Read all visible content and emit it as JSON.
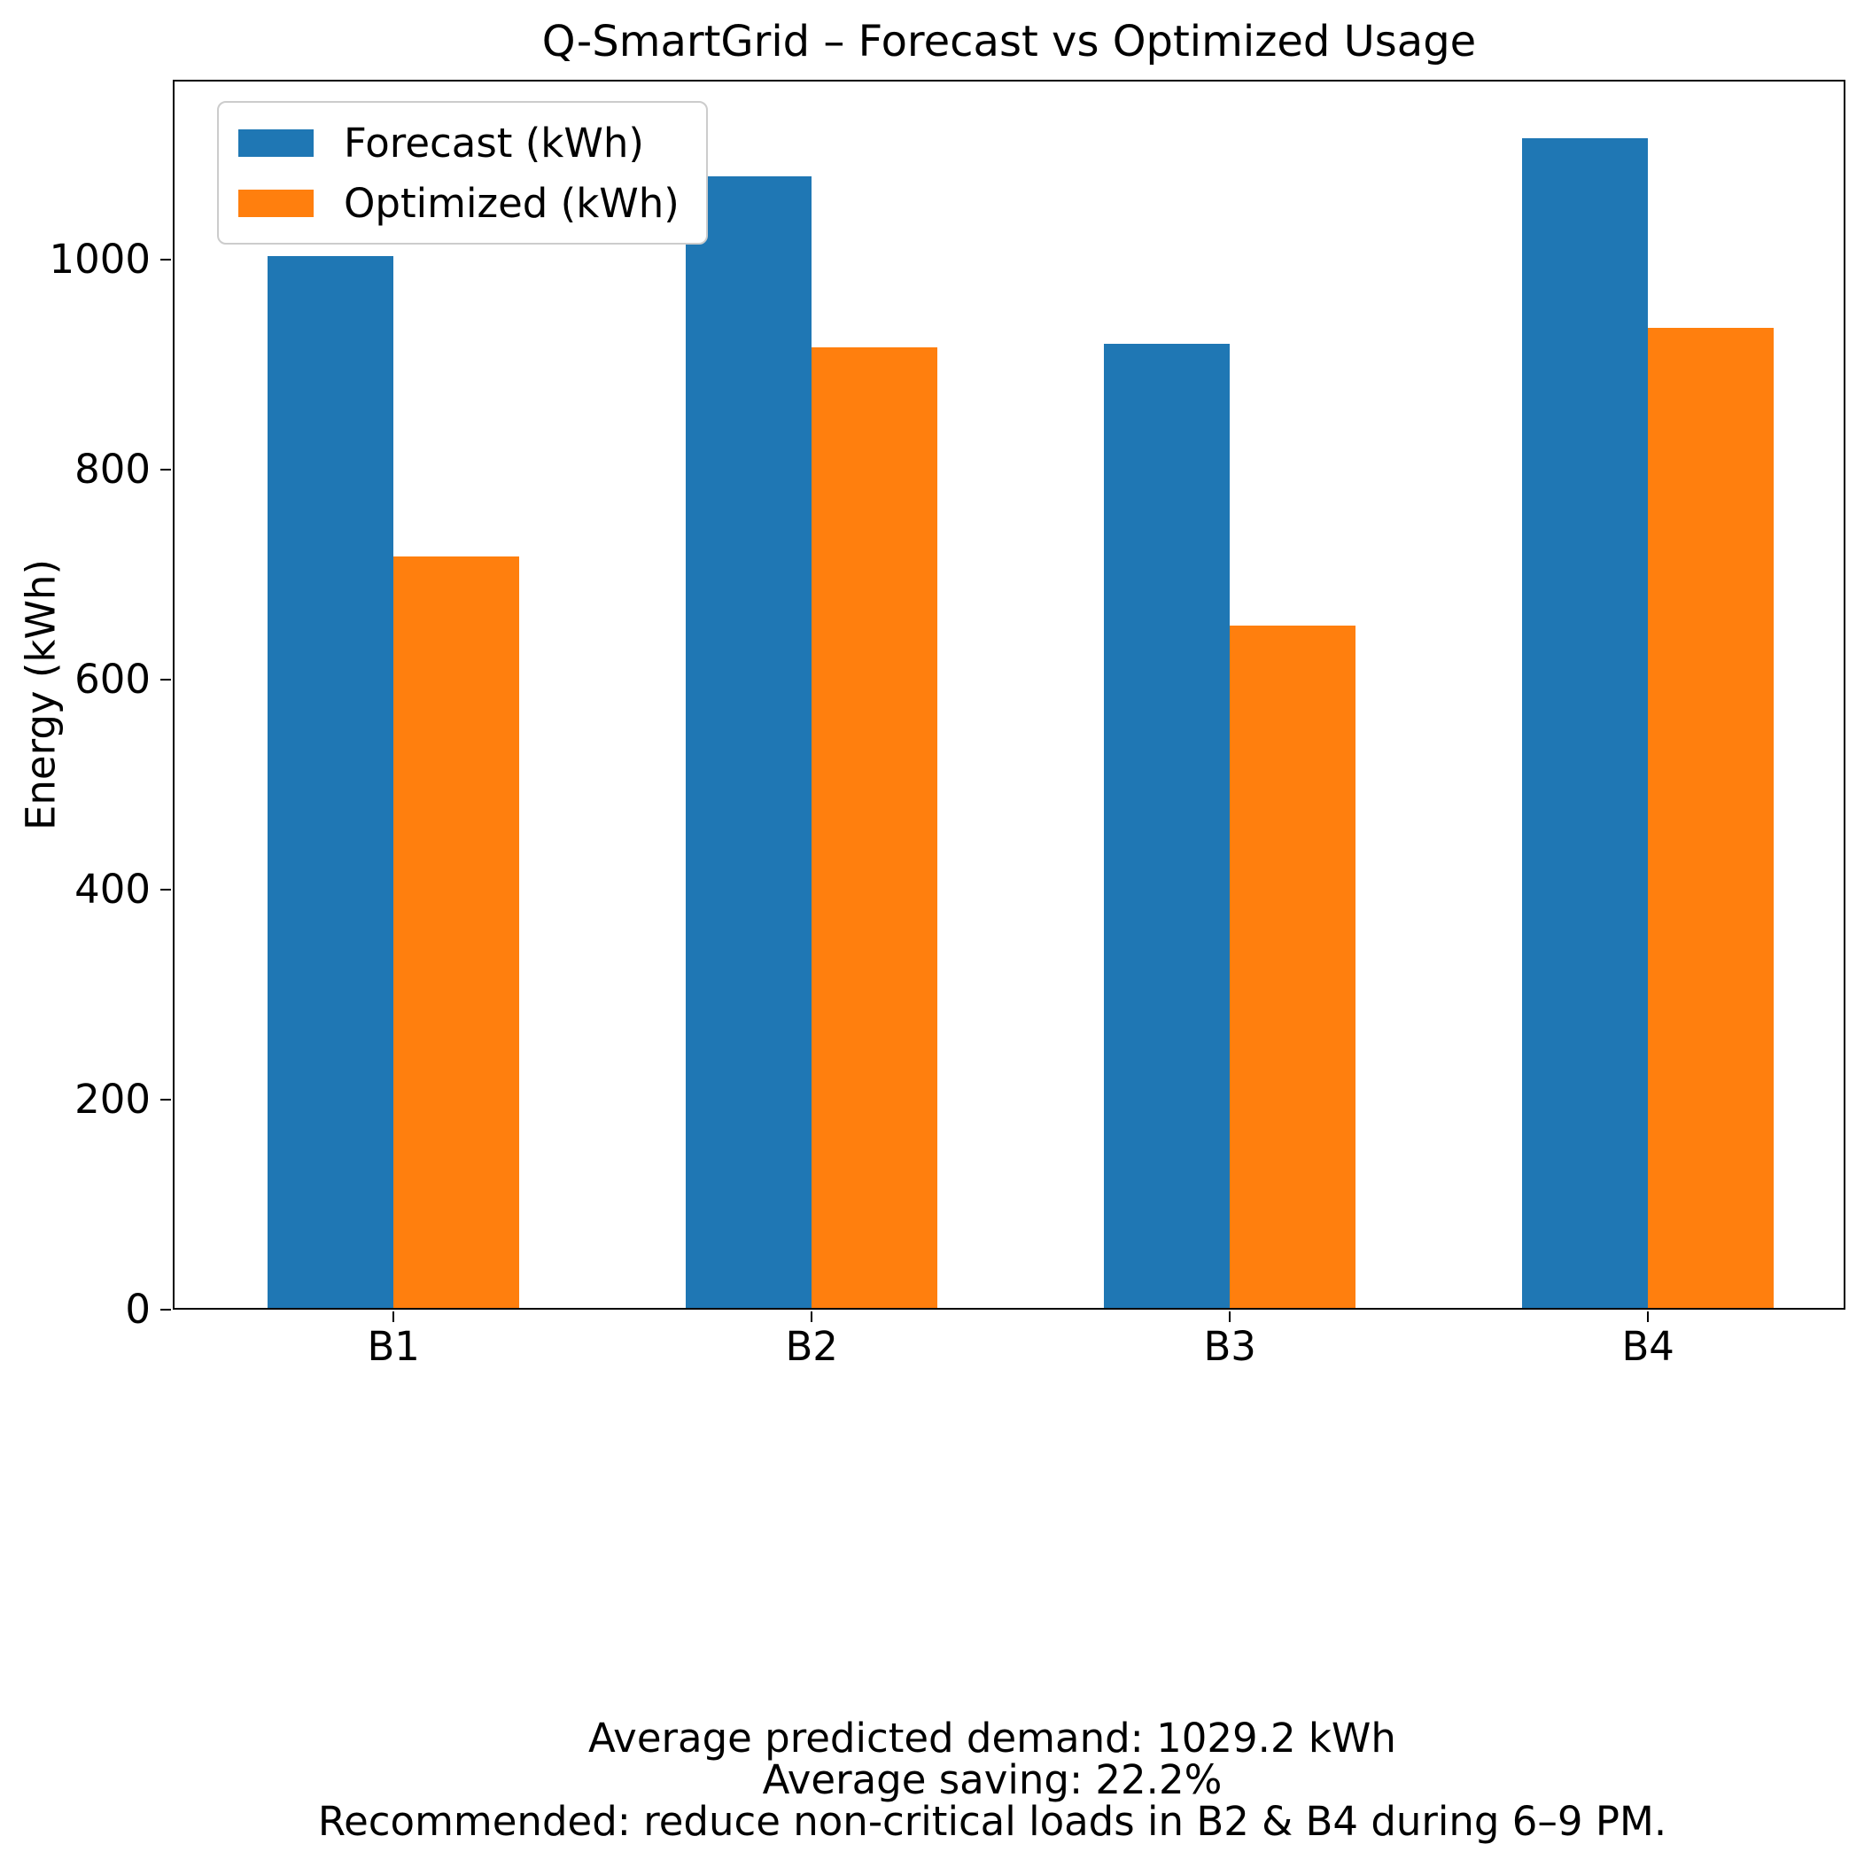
{
  "chart_data": {
    "type": "bar",
    "title": "Q-SmartGrid – Forecast vs Optimized Usage",
    "categories": [
      "B1",
      "B2",
      "B3",
      "B4"
    ],
    "series": [
      {
        "name": "Forecast (kWh)",
        "color": "#1f77b4",
        "values": [
          1003,
          1079,
          920,
          1115
        ]
      },
      {
        "name": "Optimized (kWh)",
        "color": "#ff7f0e",
        "values": [
          717,
          916,
          651,
          935
        ]
      }
    ],
    "xlabel": "",
    "ylabel": "Energy (kWh)",
    "ylim": [
      0,
      1171
    ],
    "yticks": [
      0,
      200,
      400,
      600,
      800,
      1000
    ],
    "legend_position": "upper left",
    "grid": false,
    "bar_width_fraction": 0.3
  },
  "footer": {
    "lines": [
      "Average predicted demand: 1029.2 kWh",
      "Average saving: 22.2%",
      "Recommended: reduce non-critical loads in B2 & B4 during 6–9 PM."
    ]
  }
}
